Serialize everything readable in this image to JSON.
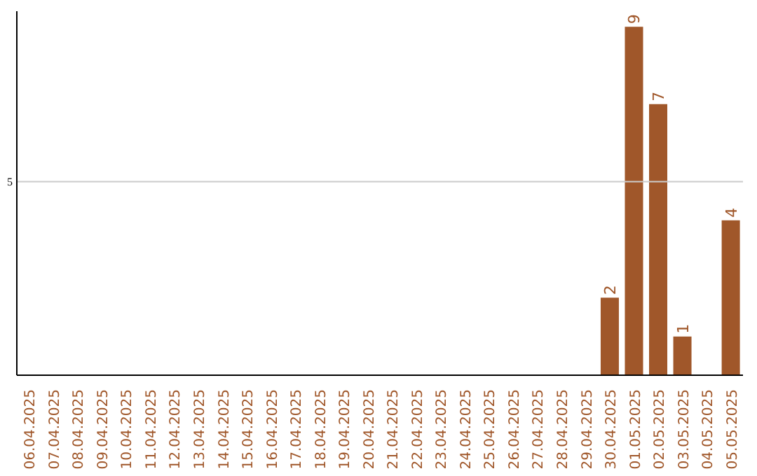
{
  "chart_data": {
    "type": "bar",
    "categories": [
      "06.04.2025",
      "07.04.2025",
      "08.04.2025",
      "09.04.2025",
      "10.04.2025",
      "11.04.2025",
      "12.04.2025",
      "13.04.2025",
      "14.04.2025",
      "15.04.2025",
      "16.04.2025",
      "17.04.2025",
      "18.04.2025",
      "19.04.2025",
      "20.04.2025",
      "21.04.2025",
      "22.04.2025",
      "23.04.2025",
      "24.04.2025",
      "25.04.2025",
      "26.04.2025",
      "27.04.2025",
      "28.04.2025",
      "29.04.2025",
      "30.04.2025",
      "01.05.2025",
      "02.05.2025",
      "03.05.2025",
      "04.05.2025",
      "05.05.2025"
    ],
    "values": [
      null,
      null,
      null,
      null,
      null,
      null,
      null,
      null,
      null,
      null,
      null,
      null,
      null,
      null,
      null,
      null,
      null,
      null,
      null,
      null,
      null,
      null,
      null,
      null,
      2,
      9,
      7,
      1,
      null,
      4
    ],
    "data_labels": true,
    "color": "#a0572a",
    "ylim": [
      0,
      9.4
    ],
    "ref_lines": [
      {
        "axis": "y",
        "value": 5,
        "label": "5",
        "color": "#cccccc"
      }
    ]
  }
}
